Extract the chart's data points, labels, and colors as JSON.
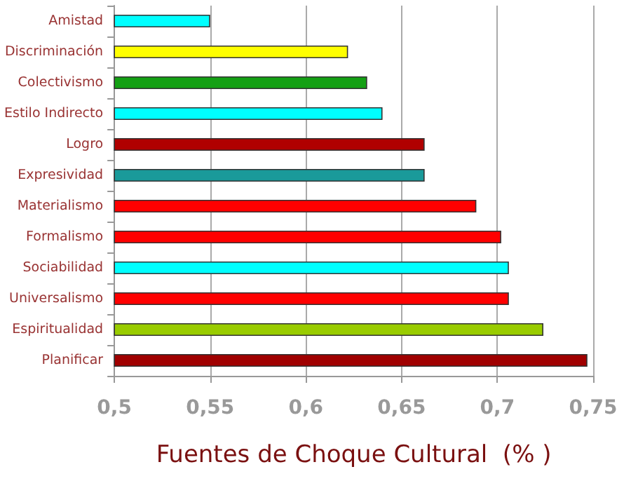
{
  "chart_data": {
    "type": "bar",
    "orientation": "horizontal",
    "xlabel": "Fuentes de Choque Cultural  (% )",
    "categories": [
      "Amistad",
      "Discriminación",
      "Colectivismo",
      "Estilo Indirecto",
      "Logro",
      "Expresividad",
      "Materialismo",
      "Formalismo",
      "Sociabilidad",
      "Universalismo",
      "Espiritualidad",
      "Planificar"
    ],
    "values": [
      0.55,
      0.622,
      0.632,
      0.64,
      0.662,
      0.662,
      0.689,
      0.702,
      0.706,
      0.706,
      0.724,
      0.747
    ],
    "colors": [
      "#00ffff",
      "#ffff00",
      "#14a014",
      "#00ffff",
      "#b00000",
      "#1a9a9a",
      "#ff0000",
      "#ff0000",
      "#00ffff",
      "#ff0000",
      "#99cc00",
      "#a00000"
    ],
    "xlim": [
      0.5,
      0.75
    ],
    "xticks": [
      {
        "value": 0.5,
        "label": "0,5"
      },
      {
        "value": 0.55,
        "label": "0,55"
      },
      {
        "value": 0.6,
        "label": "0,6"
      },
      {
        "value": 0.65,
        "label": "0,65"
      },
      {
        "value": 0.7,
        "label": "0,7"
      },
      {
        "value": 0.75,
        "label": "0,75"
      }
    ],
    "grid": "x"
  }
}
